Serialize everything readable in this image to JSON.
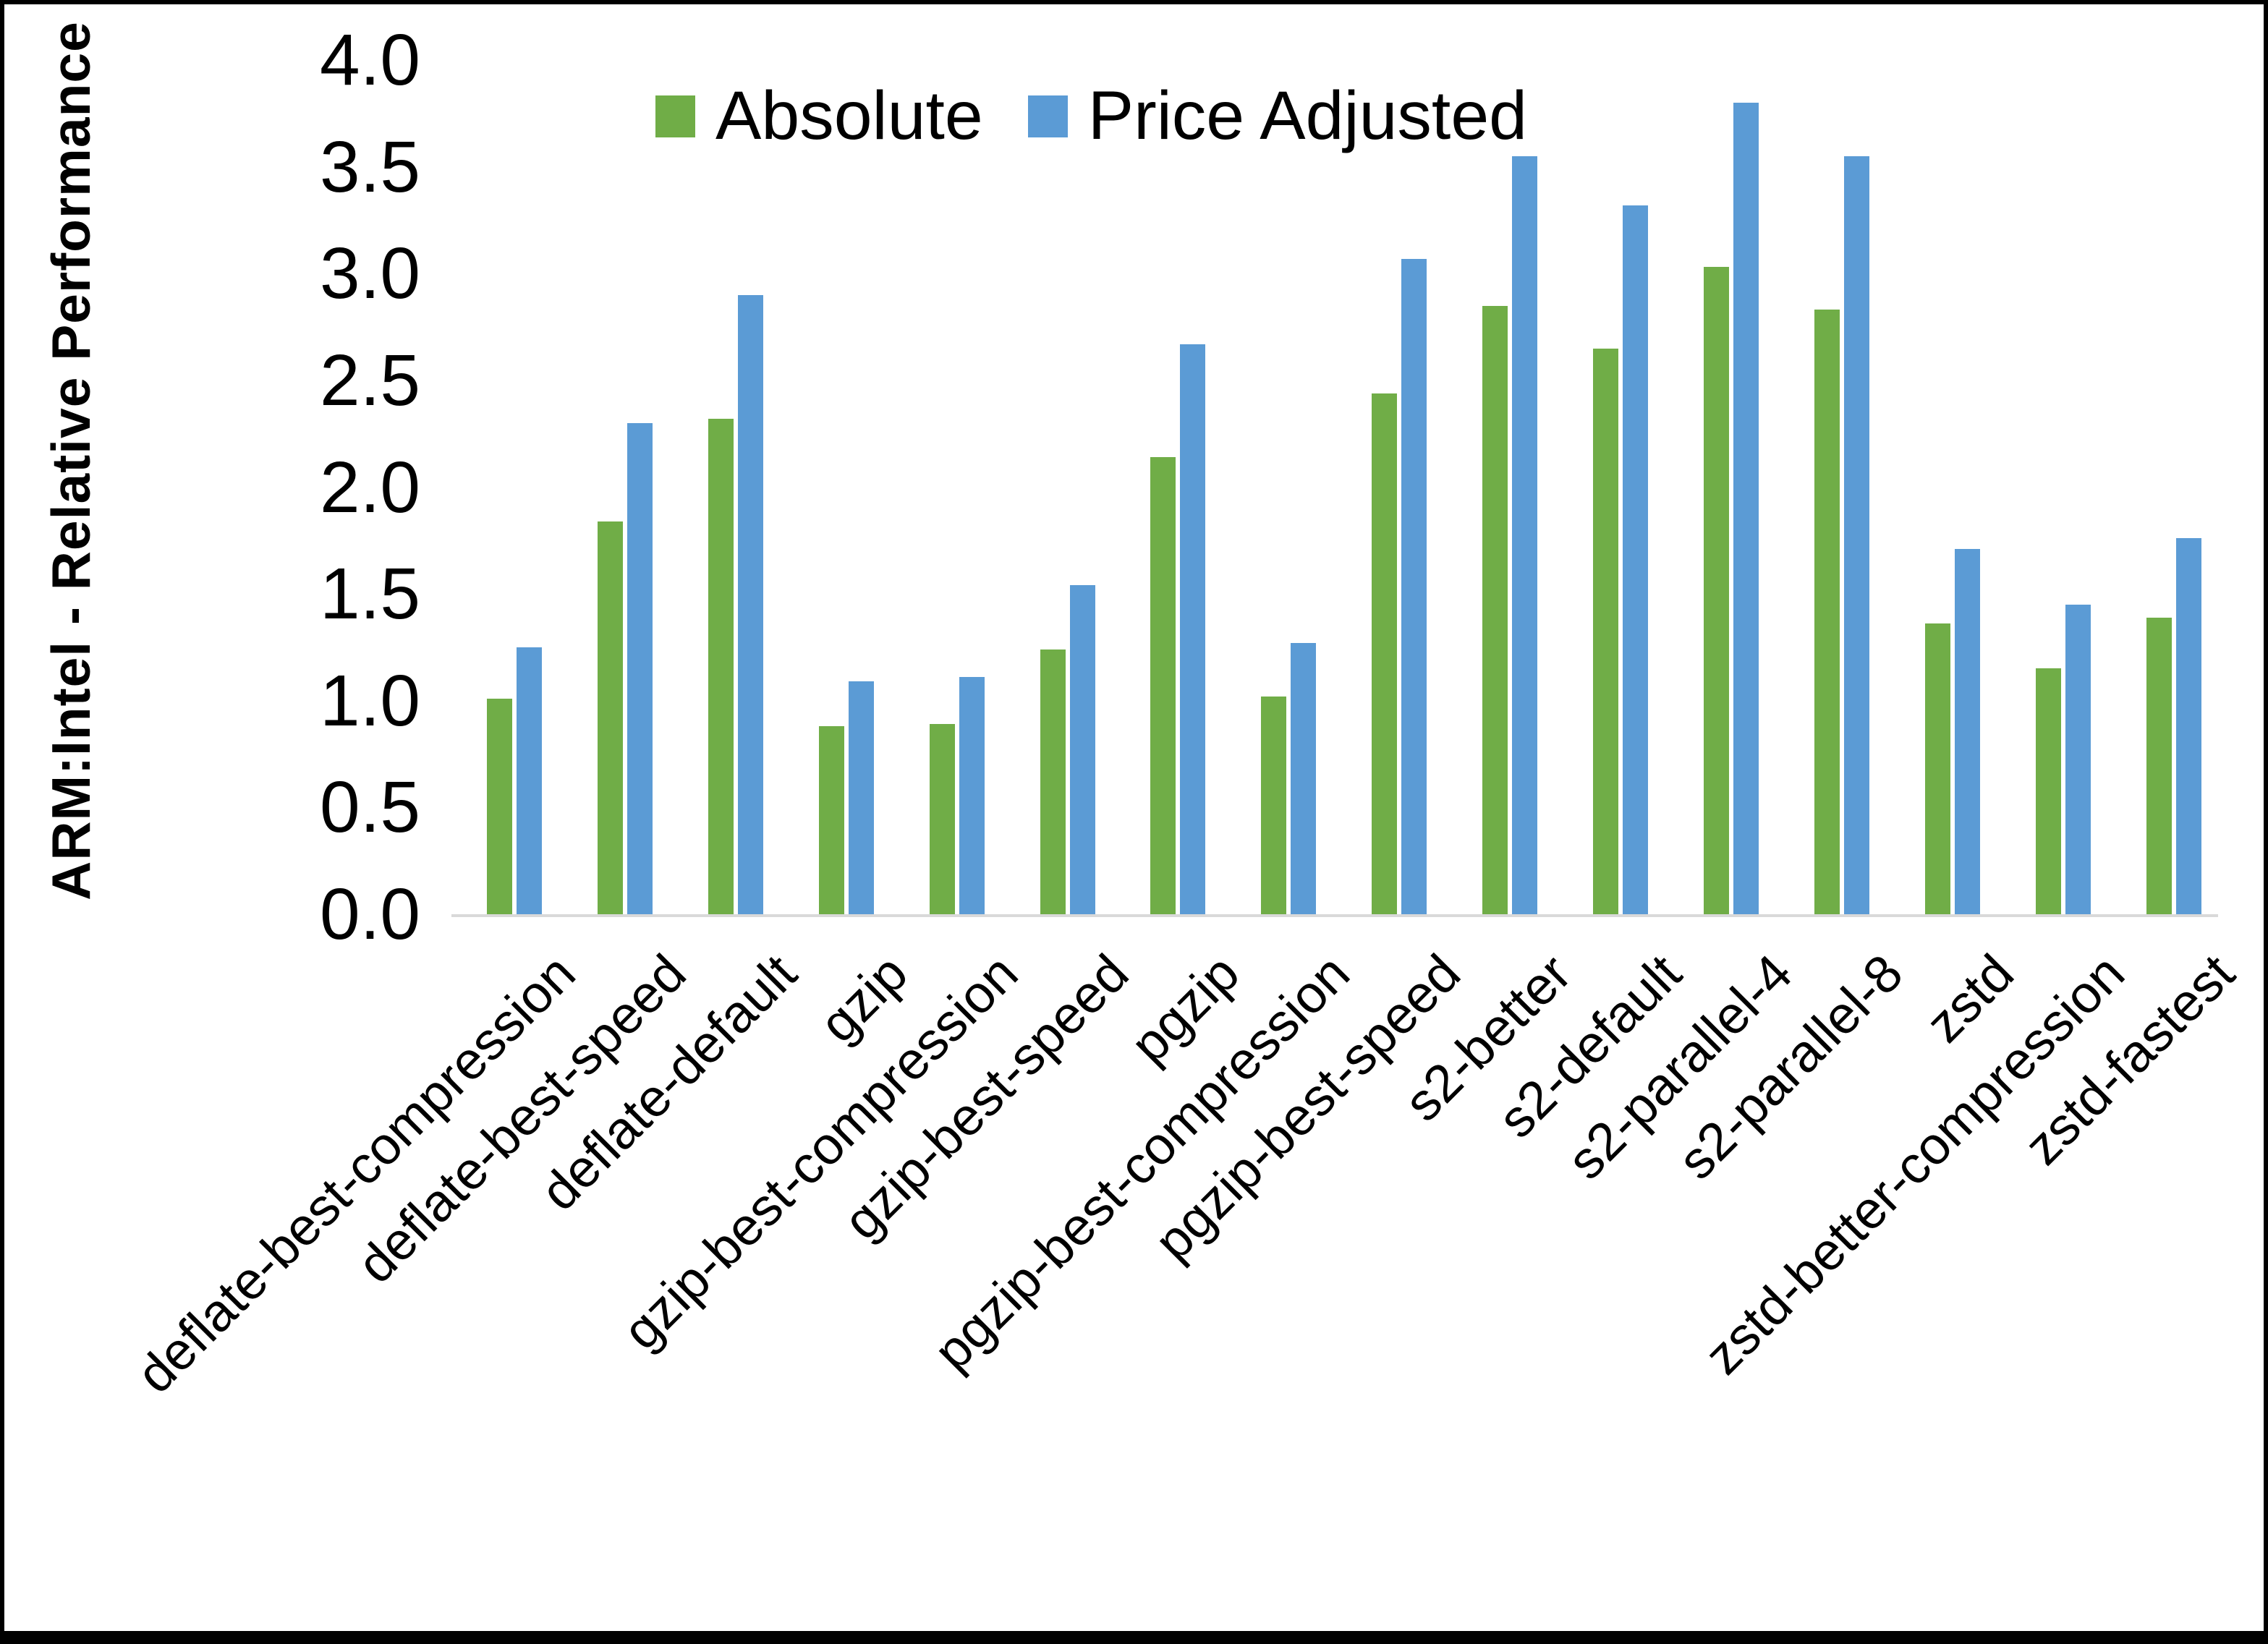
{
  "chart_data": {
    "type": "bar",
    "title": "",
    "xlabel": "",
    "ylabel": "ARM:Intel - Relative Performance",
    "ylim": [
      0.0,
      4.0
    ],
    "ytick_step": 0.5,
    "ytick_labels": [
      "0.0",
      "0.5",
      "1.0",
      "1.5",
      "2.0",
      "2.5",
      "3.0",
      "3.5",
      "4.0"
    ],
    "grid": false,
    "legend_position": "top",
    "axis_line_color": "#D9D9D9",
    "background_color": "#FFFFFF",
    "categories": [
      "deflate-best-compression",
      "deflate-best-speed",
      "deflate-default",
      "gzip",
      "gzip-best-compression",
      "gzip-best-speed",
      "pgzip",
      "pgzip-best-compression",
      "pgzip-best-speed",
      "s2-better",
      "s2-default",
      "s2-parallel-4",
      "s2-parallel-8",
      "zstd",
      "zstd-better-compression",
      "zstd-fastest"
    ],
    "series": [
      {
        "name": "Absolute",
        "color": "#70AD47",
        "values": [
          1.01,
          1.84,
          2.32,
          0.88,
          0.89,
          1.24,
          2.14,
          1.02,
          2.44,
          2.85,
          2.65,
          3.03,
          2.83,
          1.36,
          1.15,
          1.39
        ]
      },
      {
        "name": "Price Adjusted",
        "color": "#5B9BD5",
        "values": [
          1.25,
          2.3,
          2.9,
          1.09,
          1.11,
          1.54,
          2.67,
          1.27,
          3.07,
          3.55,
          3.32,
          3.8,
          3.55,
          1.71,
          1.45,
          1.76
        ]
      }
    ]
  }
}
